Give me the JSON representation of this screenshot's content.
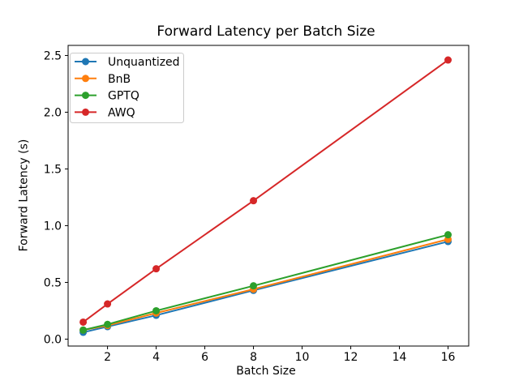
{
  "chart_data": {
    "type": "line",
    "title": "Forward Latency per Batch Size",
    "xlabel": "Batch Size",
    "ylabel": "Forward Latency (s)",
    "x": [
      1,
      2,
      4,
      8,
      16
    ],
    "series": [
      {
        "name": "Unquantized",
        "color": "#1f77b4",
        "values": [
          0.06,
          0.11,
          0.21,
          0.43,
          0.86
        ]
      },
      {
        "name": "BnB",
        "color": "#ff7f0e",
        "values": [
          0.08,
          0.12,
          0.23,
          0.44,
          0.88
        ]
      },
      {
        "name": "GPTQ",
        "color": "#2ca02c",
        "values": [
          0.08,
          0.13,
          0.25,
          0.47,
          0.92
        ]
      },
      {
        "name": "AWQ",
        "color": "#d62728",
        "values": [
          0.15,
          0.31,
          0.62,
          1.22,
          2.46
        ]
      }
    ],
    "x_ticks": [
      2,
      4,
      6,
      8,
      10,
      12,
      14,
      16
    ],
    "y_ticks": [
      "0.0",
      "0.5",
      "1.0",
      "1.5",
      "2.0",
      "2.5"
    ],
    "y_tick_values": [
      0.0,
      0.5,
      1.0,
      1.5,
      2.0,
      2.5
    ],
    "xlim": [
      0.38,
      16.85
    ],
    "ylim": [
      -0.061,
      2.589
    ],
    "grid": false,
    "marker": "o",
    "legend_position": "upper left",
    "spine_color": "#000000",
    "legend_border_color": "#cccccc",
    "background_color": "#ffffff"
  }
}
